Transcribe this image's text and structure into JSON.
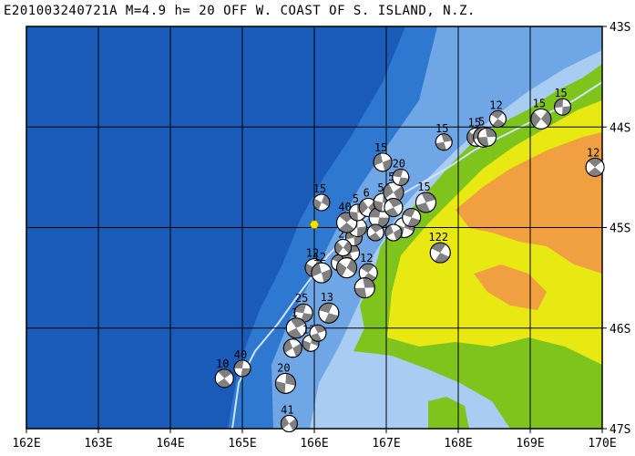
{
  "title": "E201003240721A M=4.9 h= 20 OFF W. COAST OF S. ISLAND, N.Z.",
  "map": {
    "lon_range": [
      162,
      170
    ],
    "lat_range": [
      -47,
      -43
    ],
    "lon_ticks": [
      "162E",
      "163E",
      "164E",
      "165E",
      "166E",
      "167E",
      "168E",
      "169E",
      "170E"
    ],
    "lat_ticks": [
      "43S",
      "44S",
      "45S",
      "46S",
      "47S"
    ],
    "colors": {
      "deep_ocean": "#1a5bb8",
      "ocean": "#2f78d0",
      "shelf": "#6fa6e6",
      "coast": "#a9cdf2",
      "lowland": "#7fc41c",
      "upland": "#e8e812",
      "mountain": "#f0a040",
      "grid": "#000000",
      "epicenter": "#f2e200",
      "ball_fill": "#808080"
    },
    "epicenter": {
      "lon": 166.0,
      "lat": -44.97
    },
    "mechanisms": [
      {
        "lon": 165.0,
        "lat": -46.4,
        "label": "40"
      },
      {
        "lon": 164.75,
        "lat": -46.5,
        "label": "10"
      },
      {
        "lon": 165.6,
        "lat": -46.55,
        "label": "20"
      },
      {
        "lon": 165.65,
        "lat": -46.95,
        "label": "41"
      },
      {
        "lon": 165.85,
        "lat": -45.85,
        "label": "25"
      },
      {
        "lon": 165.75,
        "lat": -46.0,
        "label": "1"
      },
      {
        "lon": 165.95,
        "lat": -46.15,
        "label": "12"
      },
      {
        "lon": 165.7,
        "lat": -46.2,
        "label": ""
      },
      {
        "lon": 166.2,
        "lat": -45.85,
        "label": "13"
      },
      {
        "lon": 166.05,
        "lat": -46.05,
        "label": ""
      },
      {
        "lon": 166.0,
        "lat": -45.4,
        "label": "12"
      },
      {
        "lon": 166.1,
        "lat": -45.45,
        "label": "12"
      },
      {
        "lon": 166.35,
        "lat": -45.35,
        "label": "2"
      },
      {
        "lon": 166.5,
        "lat": -45.25,
        "label": "2"
      },
      {
        "lon": 166.45,
        "lat": -45.4,
        "label": ""
      },
      {
        "lon": 166.55,
        "lat": -45.1,
        "label": "2"
      },
      {
        "lon": 166.75,
        "lat": -45.45,
        "label": "12"
      },
      {
        "lon": 166.7,
        "lat": -45.6,
        "label": ""
      },
      {
        "lon": 166.4,
        "lat": -45.2,
        "label": "2"
      },
      {
        "lon": 166.6,
        "lat": -45.0,
        "label": ""
      },
      {
        "lon": 166.45,
        "lat": -44.95,
        "label": "40"
      },
      {
        "lon": 166.6,
        "lat": -44.85,
        "label": "5"
      },
      {
        "lon": 166.75,
        "lat": -44.8,
        "label": "6"
      },
      {
        "lon": 166.9,
        "lat": -44.9,
        "label": "5"
      },
      {
        "lon": 166.85,
        "lat": -45.05,
        "label": ""
      },
      {
        "lon": 166.95,
        "lat": -44.75,
        "label": "5"
      },
      {
        "lon": 167.1,
        "lat": -44.65,
        "label": "5"
      },
      {
        "lon": 167.2,
        "lat": -44.5,
        "label": "20"
      },
      {
        "lon": 167.1,
        "lat": -44.8,
        "label": ""
      },
      {
        "lon": 167.25,
        "lat": -45.0,
        "label": ""
      },
      {
        "lon": 167.1,
        "lat": -45.05,
        "label": ""
      },
      {
        "lon": 167.35,
        "lat": -44.9,
        "label": ""
      },
      {
        "lon": 167.55,
        "lat": -44.75,
        "label": "15"
      },
      {
        "lon": 166.1,
        "lat": -44.75,
        "label": "15"
      },
      {
        "lon": 166.95,
        "lat": -44.35,
        "label": "15"
      },
      {
        "lon": 167.75,
        "lat": -45.25,
        "label": "122"
      },
      {
        "lon": 167.8,
        "lat": -44.15,
        "label": "15"
      },
      {
        "lon": 168.25,
        "lat": -44.1,
        "label": "15"
      },
      {
        "lon": 168.35,
        "lat": -44.1,
        "label": "5"
      },
      {
        "lon": 168.55,
        "lat": -43.92,
        "label": "12"
      },
      {
        "lon": 168.4,
        "lat": -44.1,
        "label": ""
      },
      {
        "lon": 169.15,
        "lat": -43.92,
        "label": "15"
      },
      {
        "lon": 169.45,
        "lat": -43.8,
        "label": "15"
      },
      {
        "lon": 169.9,
        "lat": -44.4,
        "label": "12"
      }
    ]
  }
}
